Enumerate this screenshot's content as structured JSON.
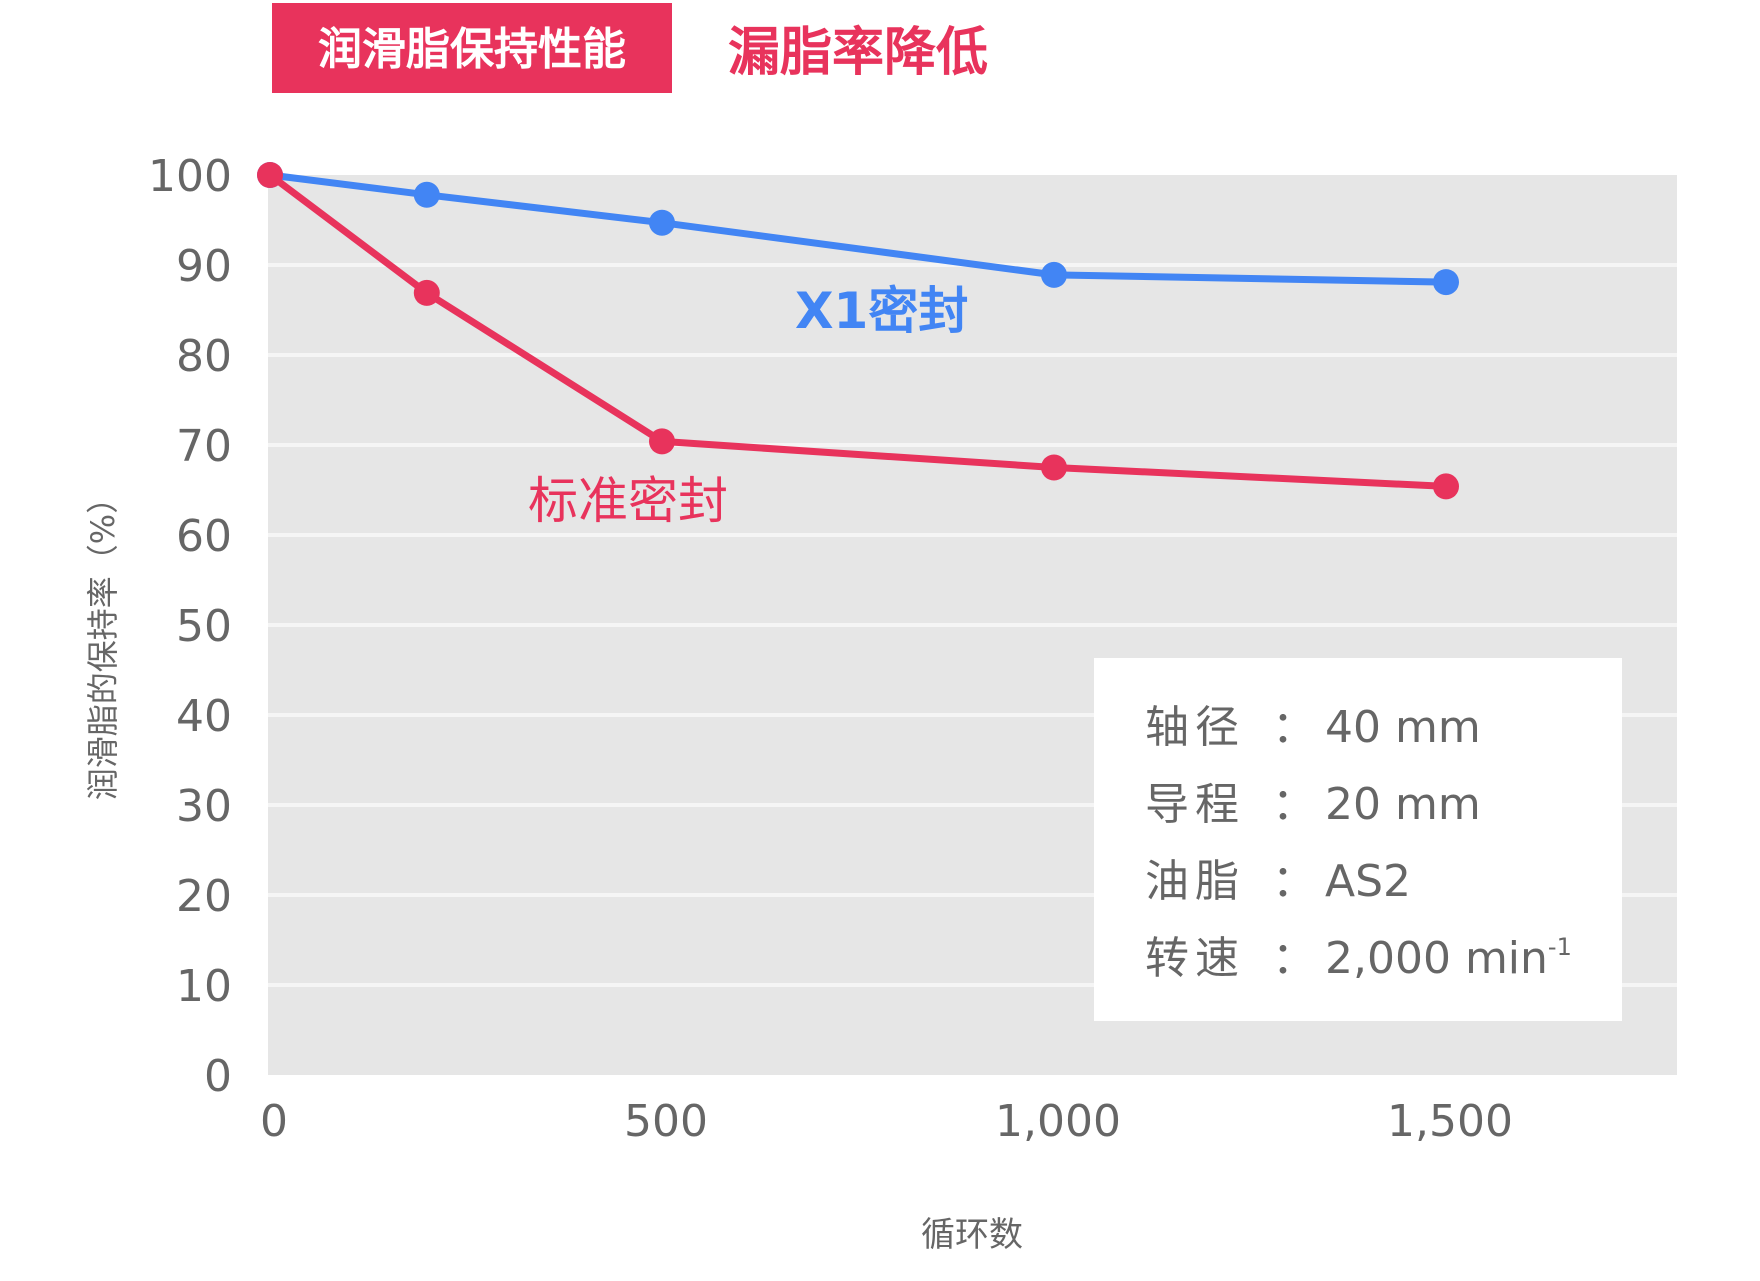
{
  "header": {
    "badge": "润滑脂保持性能",
    "subtitle": "漏脂率降低"
  },
  "colors": {
    "x1_seal": "#4285f4",
    "standard_seal": "#e8335c",
    "plot_background": "#e6e6e6",
    "gridline": "#f5f5f5",
    "axis_text": "#666666"
  },
  "chart_data": {
    "type": "line",
    "xlabel": "循环数",
    "ylabel": "润滑脂的保持率（%）",
    "xlim": [
      0,
      1800
    ],
    "ylim": [
      0,
      100
    ],
    "xticks": [
      0,
      500,
      1000,
      1500
    ],
    "xtick_labels": [
      "0",
      "500",
      "1,000",
      "1,500"
    ],
    "yticks": [
      0,
      10,
      20,
      30,
      40,
      50,
      60,
      70,
      80,
      90,
      100
    ],
    "ytick_labels": [
      "0",
      "10",
      "20",
      "30",
      "40",
      "50",
      "60",
      "70",
      "80",
      "90",
      "100"
    ],
    "grid": true,
    "series": [
      {
        "name": "X1密封",
        "color": "#4285f4",
        "x": [
          0,
          200,
          500,
          1000,
          1500
        ],
        "y": [
          100,
          97.8,
          94.7,
          88.9,
          88.1
        ]
      },
      {
        "name": "标准密封",
        "color": "#e8335c",
        "x": [
          0,
          200,
          500,
          1000,
          1500
        ],
        "y": [
          100,
          86.9,
          70.4,
          67.5,
          65.4
        ]
      }
    ]
  },
  "info_box": {
    "rows": [
      {
        "label": "轴径",
        "sep": "：",
        "value": "40 mm",
        "sup": ""
      },
      {
        "label": "导程",
        "sep": "：",
        "value": "20 mm",
        "sup": ""
      },
      {
        "label": "油脂",
        "sep": "：",
        "value": "AS2",
        "sup": ""
      },
      {
        "label": "转速",
        "sep": "：",
        "value": "2,000 min",
        "sup": "-1"
      }
    ]
  }
}
